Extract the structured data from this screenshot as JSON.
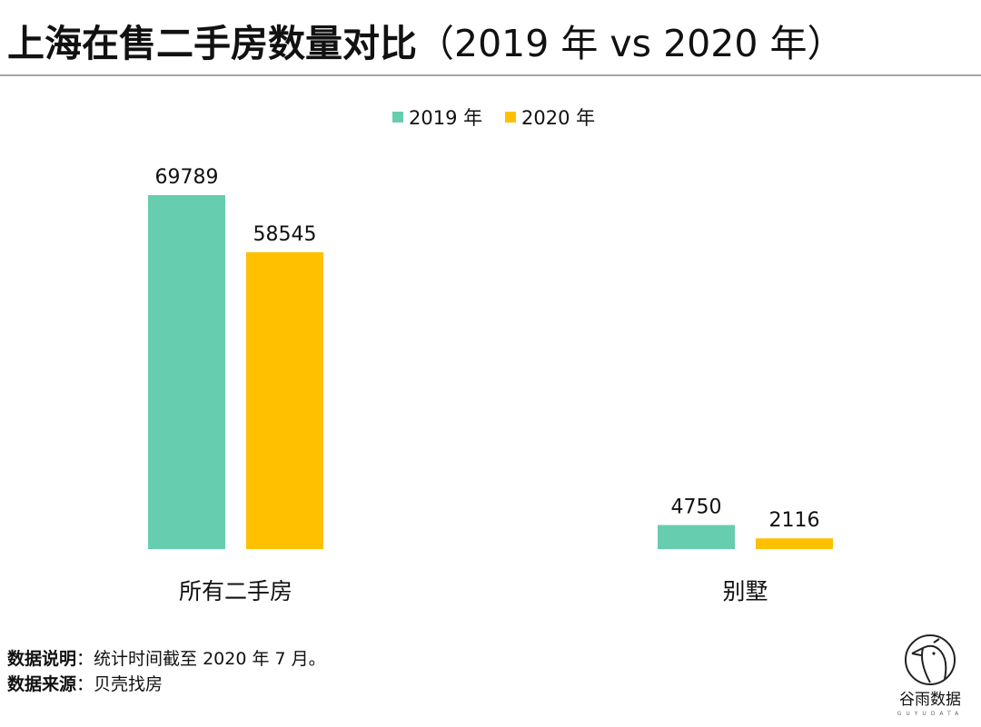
{
  "header": {
    "title_main": "上海在售二手房数量对比",
    "title_sub": "（2019 年 vs 2020 年）"
  },
  "colors": {
    "series_2019": "#66CDAF",
    "series_2020": "#FFC000",
    "rule": "#A6A6A6",
    "text": "#111111"
  },
  "chart_data": {
    "type": "bar",
    "title": "上海在售二手房数量对比（2019 年 vs 2020 年）",
    "xlabel": "",
    "ylabel": "",
    "categories": [
      "所有二手房",
      "别墅"
    ],
    "series": [
      {
        "name": "2019 年",
        "values": [
          69789,
          4750
        ],
        "color": "#66CDAF"
      },
      {
        "name": "2020 年",
        "values": [
          58545,
          2116
        ],
        "color": "#FFC000"
      }
    ],
    "data_labels": true,
    "legend_position": "top-center",
    "grid": false,
    "y_axis_visible": false,
    "ylim": [
      0,
      69789
    ]
  },
  "notes": [
    {
      "label": "数据说明",
      "sep": "：",
      "text": "统计时间截至 2020 年 7 月。"
    },
    {
      "label": "数据来源",
      "sep": "：",
      "text": "贝壳找房"
    }
  ],
  "logo": {
    "icon": "bird-in-circle-icon",
    "name": "谷雨数据",
    "subtitle": "GUYUDATA"
  }
}
